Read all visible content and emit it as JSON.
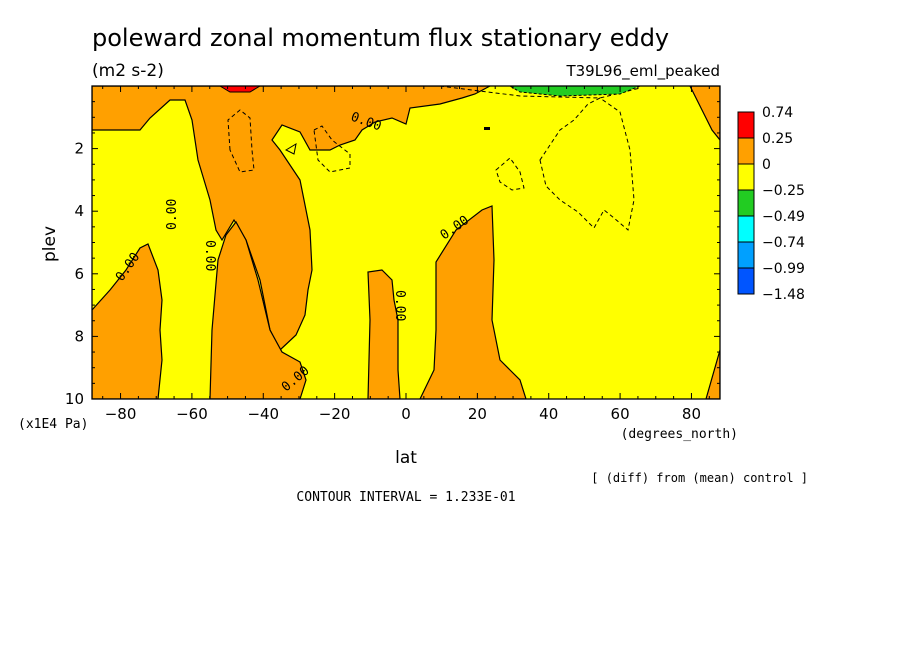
{
  "chart_data": {
    "type": "contour",
    "title": "poleward zonal momentum flux stationary eddy",
    "units": "(m2 s-2)",
    "experiment": "T39L96_eml_peaked",
    "xlabel": "lat",
    "xunits": "(degrees_north)",
    "ylabel": "plev",
    "yunits": "(x1E4 Pa)",
    "xlim": [
      -88,
      88
    ],
    "ylim": [
      10,
      0
    ],
    "x_ticks": [
      -80,
      -60,
      -40,
      -20,
      0,
      20,
      40,
      60,
      80
    ],
    "y_ticks": [
      2,
      4,
      6,
      8,
      10
    ],
    "contour_interval_text": "CONTOUR INTERVAL = 1.233E-01",
    "diff_note": "[ (diff) from (mean) control ]",
    "zero_contour_label": "0.00",
    "colorbar": {
      "labels": [
        "0.74",
        "0.25",
        "0",
        "−0.25",
        "−0.49",
        "−0.74",
        "−0.99",
        "−1.48"
      ],
      "colors": [
        "#ff0000",
        "#ffa000",
        "#ffff00",
        "#22cc22",
        "#00ffff",
        "#00a0ff",
        "#0055ff"
      ]
    },
    "background_color": "#ffff00",
    "positive_color": "#ffa000"
  }
}
